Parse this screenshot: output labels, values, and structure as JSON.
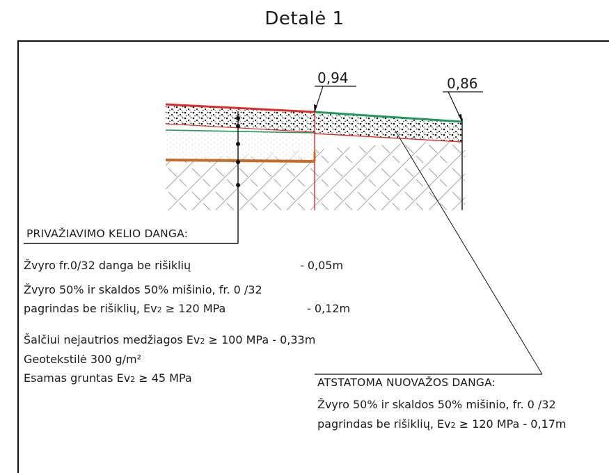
{
  "title": "Detalė 1",
  "elevations": {
    "left": "0,94",
    "right": "0,86"
  },
  "driveway": {
    "header": "PRIVAŽIAVIMO KELIO DANGA:",
    "layer1": {
      "name": "Žvyro fr.0/32 danga be rišiklių",
      "thickness": "- 0,05m"
    },
    "layer2_line1": "Žvyro 50% ir skaldos 50% mišinio, fr. 0 /32",
    "layer2_line2": {
      "pre": "pagrindas be rišiklių, Ev",
      "sub": "2",
      "post": " ≥ 120 MPa",
      "thickness": "- 0,12m"
    },
    "layer3": {
      "pre": "Šalčiui nejautrios medžiagos Ev",
      "sub": "2",
      "post": " ≥ 100 MPa - 0,33m"
    },
    "layer4": "Geotekstilė 300 g/m²",
    "layer5": {
      "pre": "Esamas gruntas Ev",
      "sub": "2",
      "post": " ≥ 45 MPa"
    }
  },
  "exit_restore": {
    "header": "ATSTATOMA NUOVAŽOS DANGA:",
    "line1": "Žvyro 50% ir skaldos 50% mišinio, fr. 0 /32",
    "line2": {
      "pre": "pagrindas be rišiklių, Ev",
      "sub": "2",
      "post": " ≥ 120 MPa  - 0,17m"
    }
  },
  "colors": {
    "existing": "#e02a2a",
    "design": "#1f9a5a",
    "geotextile": "#c86a2a",
    "ink": "#111111"
  }
}
